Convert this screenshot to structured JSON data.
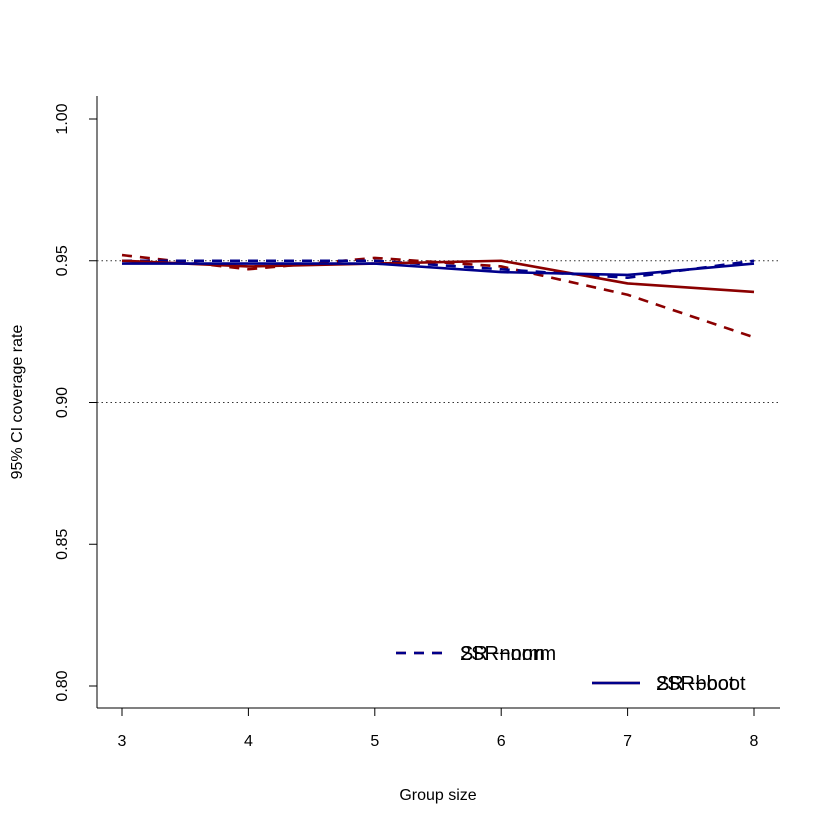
{
  "chart_data": {
    "type": "line",
    "title": "",
    "xlabel": "Group size",
    "ylabel": "95% CI coverage rate",
    "xlim": [
      3,
      8
    ],
    "ylim": [
      0.8,
      1.0
    ],
    "x_ticks": [
      "3",
      "4",
      "5",
      "6",
      "7",
      "8"
    ],
    "y_ticks": [
      "0.80",
      "0.85",
      "0.90",
      "0.95",
      "1.00"
    ],
    "x": [
      3,
      4,
      5,
      6,
      7,
      8
    ],
    "reference_lines": [
      0.95,
      0.9
    ],
    "grid": false,
    "legend_position": "bottom-right",
    "series": [
      {
        "name": "SR−norm",
        "color": "#8B0000",
        "dash": "dashed",
        "values": [
          0.952,
          0.947,
          0.951,
          0.948,
          0.938,
          0.923
        ]
      },
      {
        "name": "2SR−norm",
        "color": "#00008B",
        "dash": "dashed",
        "values": [
          0.95,
          0.95,
          0.95,
          0.947,
          0.944,
          0.95
        ]
      },
      {
        "name": "SR−boot",
        "color": "#8B0000",
        "dash": "solid",
        "values": [
          0.95,
          0.948,
          0.949,
          0.95,
          0.942,
          0.939
        ]
      },
      {
        "name": "2SR−boot",
        "color": "#00008B",
        "dash": "solid",
        "values": [
          0.949,
          0.949,
          0.949,
          0.946,
          0.945,
          0.949
        ]
      }
    ]
  }
}
